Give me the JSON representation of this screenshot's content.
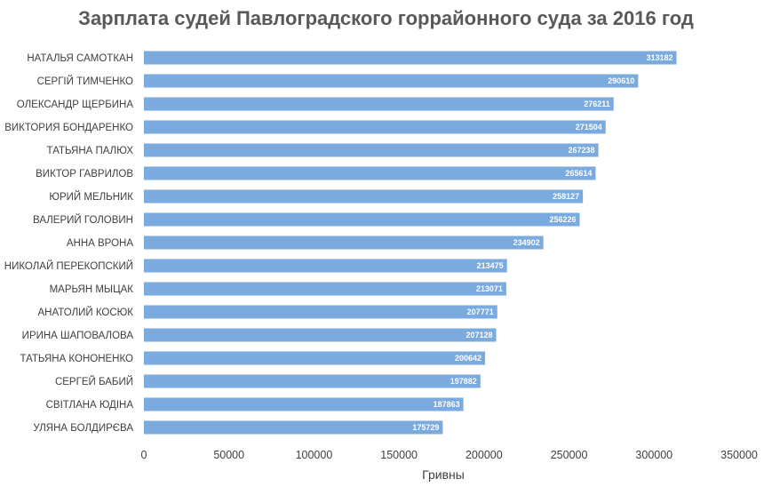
{
  "chart_data": {
    "type": "bar",
    "orientation": "horizontal",
    "title": "Зарплата судей Павлоградского горрайонного суда за 2016 год",
    "xlabel": "Гривны",
    "ylabel": "",
    "xlim": [
      0,
      350000
    ],
    "xticks": [
      "0",
      "50000",
      "100000",
      "150000",
      "200000",
      "250000",
      "300000",
      "350000"
    ],
    "grid": false,
    "legend": "none",
    "bar_color": "#7aaade",
    "categories": [
      "НАТАЛЬЯ САМОТКАН",
      "СЕРГІЙ ТИМЧЕНКО",
      "ОЛЕКСАНДР ЩЕРБИНА",
      "ВИКТОРИЯ БОНДАРЕНКО",
      "ТАТЬЯНА ПАЛЮХ",
      "ВИКТОР ГАВРИЛОВ",
      "ЮРИЙ МЕЛЬНИК",
      "ВАЛЕРИЙ ГОЛОВИН",
      "АННА ВРОНА",
      "НИКОЛАЙ ПЕРЕКОПСКИЙ",
      "МАРЬЯН МЫЦАК",
      "АНАТОЛИЙ КОСЮК",
      "ИРИНА ШАПОВАЛОВА",
      "ТАТЬЯНА КОНОНЕНКО",
      "СЕРГЕЙ БАБИЙ",
      "СВІТЛАНА ЮДІНА",
      "УЛЯНА БОЛДИРЄВА"
    ],
    "values": [
      313182,
      290610,
      276211,
      271504,
      267238,
      265614,
      258127,
      256226,
      234902,
      213475,
      213071,
      207771,
      207128,
      200642,
      197882,
      187863,
      175729
    ]
  }
}
